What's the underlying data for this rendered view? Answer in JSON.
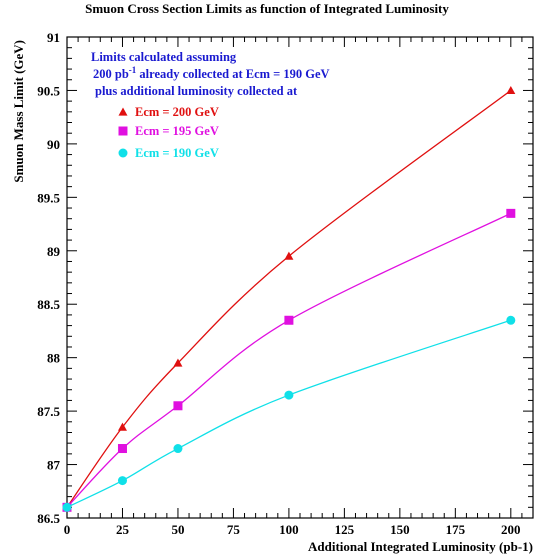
{
  "chart_data": {
    "type": "line",
    "title": "Smuon Cross Section Limits as function of Integrated Luminosity",
    "xlabel": "Additional Integrated Luminosity (pb-1)",
    "ylabel": "Smuon Mass Limit (GeV)",
    "xlim": [
      0,
      210
    ],
    "ylim": [
      86.5,
      91
    ],
    "xticks": [
      0,
      25,
      50,
      75,
      100,
      125,
      150,
      175,
      200
    ],
    "xtick_labels": [
      "0",
      "25",
      "50",
      "75",
      "100",
      "125",
      "150",
      "175",
      "200"
    ],
    "yticks": [
      86.5,
      87,
      87.5,
      88,
      88.5,
      89,
      89.5,
      90,
      90.5,
      91
    ],
    "ytick_labels": [
      "86.5",
      "87",
      "87.5",
      "88",
      "88.5",
      "89",
      "89.5",
      "90",
      "90.5",
      "91"
    ],
    "grid": false,
    "legend_position": "top-left",
    "annotation": {
      "line1": "Limits calculated assuming",
      "line2_prefix": "200 pb",
      "line2_sup": "-1",
      "line2_suffix": " already collected at Ecm = 190 GeV",
      "line3": "plus additional luminosity collected at",
      "color": "#1a1ad0"
    },
    "series": [
      {
        "name": "Ecm = 200 GeV",
        "color": "#e01010",
        "marker": "triangle",
        "x": [
          0,
          25,
          50,
          100,
          200
        ],
        "values": [
          86.6,
          87.35,
          87.95,
          88.95,
          90.5
        ]
      },
      {
        "name": "Ecm = 195 GeV",
        "color": "#e010e0",
        "marker": "square",
        "x": [
          0,
          25,
          50,
          100,
          200
        ],
        "values": [
          86.6,
          87.15,
          87.55,
          88.35,
          89.35
        ]
      },
      {
        "name": "Ecm = 190 GeV",
        "color": "#10e0e8",
        "marker": "circle",
        "x": [
          0,
          25,
          50,
          100,
          200
        ],
        "values": [
          86.6,
          86.85,
          87.15,
          87.65,
          88.35
        ]
      }
    ]
  }
}
